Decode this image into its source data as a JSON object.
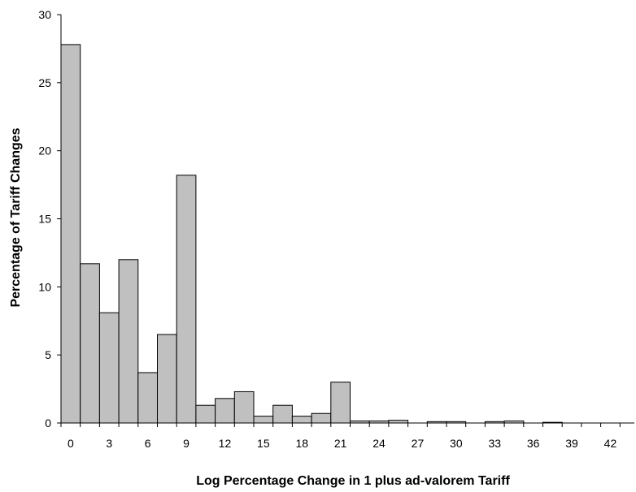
{
  "chart_data": {
    "type": "bar",
    "title": "",
    "xlabel": "Log Percentage Change in 1 plus ad-valorem Tariff",
    "ylabel": "Percentage of Tariff Changes",
    "ylim": [
      0,
      30
    ],
    "yticks": [
      "0",
      "5",
      "10",
      "15",
      "20",
      "25",
      "30"
    ],
    "xtick_labels": [
      "0",
      "3",
      "6",
      "9",
      "12",
      "15",
      "18",
      "21",
      "24",
      "27",
      "30",
      "33",
      "36",
      "39",
      "42"
    ],
    "categories": [
      "0",
      "1.5",
      "3",
      "4.5",
      "6",
      "7.5",
      "9",
      "10.5",
      "12",
      "13.5",
      "15",
      "16.5",
      "18",
      "19.5",
      "21",
      "22.5",
      "24",
      "25.5",
      "27",
      "28.5",
      "30",
      "31.5",
      "33",
      "34.5",
      "36",
      "37.5",
      "39",
      "40.5",
      "42",
      "43.5"
    ],
    "values": [
      27.8,
      11.7,
      8.1,
      12.0,
      3.7,
      6.5,
      18.2,
      1.3,
      1.8,
      2.3,
      0.5,
      1.3,
      0.5,
      0.7,
      3.0,
      0.15,
      0.15,
      0.2,
      0.0,
      0.1,
      0.1,
      0.0,
      0.1,
      0.15,
      0.0,
      0.05,
      0.0,
      0.0,
      0.0,
      0.0
    ],
    "bar_color": "#c0c0c0",
    "bar_edge_color": "#000000",
    "grid": false,
    "legend": "none"
  }
}
